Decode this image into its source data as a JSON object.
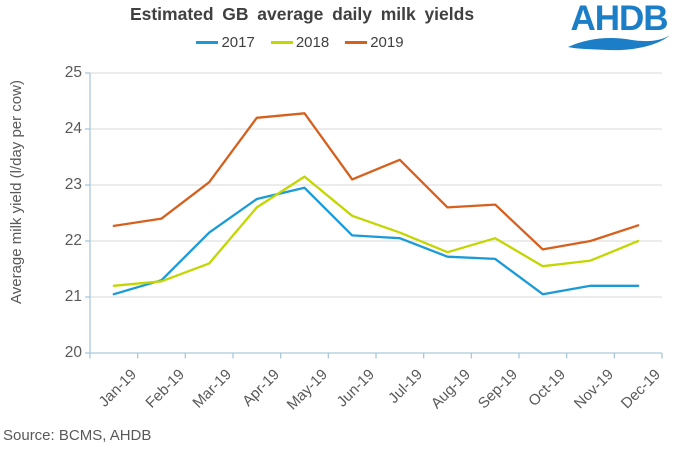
{
  "title": "Estimated GB average daily milk yields",
  "logo": {
    "text": "AHDB",
    "color": "#1b7ec6"
  },
  "source": "Source: BCMS, AHDB",
  "chart_data": {
    "type": "line",
    "title": "Estimated GB average daily milk yields",
    "ylabel": "Average milk yield (l/day per cow)",
    "xlabel": "",
    "ylim": [
      20,
      25
    ],
    "ytick_step": 1,
    "grid": "horizontal",
    "legend_position": "top-center",
    "axis_color": "#a9c9da",
    "grid_color": "#d9d9d9",
    "categories": [
      "Jan-19",
      "Feb-19",
      "Mar-19",
      "Apr-19",
      "May-19",
      "Jun-19",
      "Jul-19",
      "Aug-19",
      "Sep-19",
      "Oct-19",
      "Nov-19",
      "Dec-19"
    ],
    "series": [
      {
        "name": "2017",
        "color": "#1a9bd7",
        "values": [
          21.05,
          21.3,
          22.15,
          22.75,
          22.95,
          22.1,
          22.05,
          21.72,
          21.68,
          21.05,
          21.2,
          21.2
        ]
      },
      {
        "name": "2018",
        "color": "#c3d600",
        "values": [
          21.2,
          21.28,
          21.6,
          22.6,
          23.15,
          22.45,
          22.15,
          21.8,
          22.05,
          21.55,
          21.65,
          22.0
        ]
      },
      {
        "name": "2019",
        "color": "#d6601e",
        "values": [
          22.27,
          22.4,
          23.05,
          24.2,
          24.28,
          23.1,
          23.45,
          22.6,
          22.65,
          21.85,
          22.0,
          22.28
        ]
      }
    ]
  }
}
